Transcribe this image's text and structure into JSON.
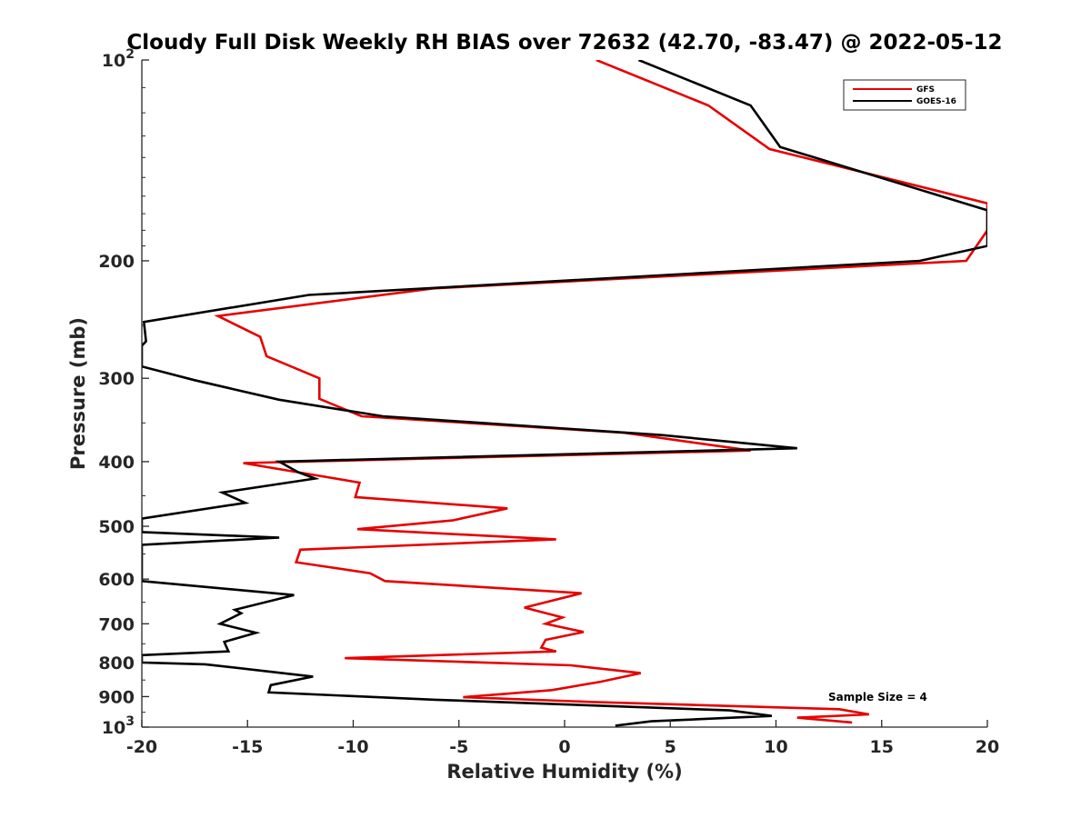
{
  "chart_data": {
    "type": "line",
    "title": "Cloudy Full Disk Weekly RH BIAS over 72632 (42.70, -83.47) @ 2022-05-12",
    "xlabel": "Relative Humidity (%)",
    "ylabel": "Pressure (mb)",
    "xlim": [
      -20,
      20
    ],
    "ylim": [
      100,
      1000
    ],
    "y_scale": "log",
    "y_reversed": true,
    "x_ticks": [
      "-20",
      "-15",
      "-10",
      "-5",
      "0",
      "5",
      "10",
      "15",
      "20"
    ],
    "y_ticks": [
      {
        "value": 100,
        "label": "10",
        "sup": "2"
      },
      {
        "value": 200,
        "label": "200",
        "sup": ""
      },
      {
        "value": 300,
        "label": "300",
        "sup": ""
      },
      {
        "value": 400,
        "label": "400",
        "sup": ""
      },
      {
        "value": 500,
        "label": "500",
        "sup": ""
      },
      {
        "value": 600,
        "label": "600",
        "sup": ""
      },
      {
        "value": 700,
        "label": "700",
        "sup": ""
      },
      {
        "value": 800,
        "label": "800",
        "sup": ""
      },
      {
        "value": 900,
        "label": "900",
        "sup": ""
      },
      {
        "value": 1000,
        "label": "10",
        "sup": "3"
      }
    ],
    "grid": false,
    "legend_position": "top-right",
    "annotation": "Sample Size = 4",
    "series": [
      {
        "name": "GFS",
        "color": "#e60000",
        "points": [
          [
            1.5,
            100
          ],
          [
            6.8,
            117
          ],
          [
            9.7,
            136
          ],
          [
            20.0,
            164
          ],
          [
            20.0,
            180
          ],
          [
            19.0,
            200
          ],
          [
            -6.2,
            220
          ],
          [
            -16.4,
            242
          ],
          [
            -14.4,
            260
          ],
          [
            -14.1,
            278
          ],
          [
            -11.6,
            300
          ],
          [
            -11.6,
            322
          ],
          [
            -9.6,
            342
          ],
          [
            2.8,
            362
          ],
          [
            8.8,
            385
          ],
          [
            -15.2,
            402
          ],
          [
            -9.7,
            430
          ],
          [
            -9.9,
            452
          ],
          [
            -2.7,
            470
          ],
          [
            -5.3,
            490
          ],
          [
            -9.8,
            505
          ],
          [
            -0.4,
            523
          ],
          [
            -12.5,
            542
          ],
          [
            -12.7,
            566
          ],
          [
            -9.2,
            588
          ],
          [
            -8.5,
            604
          ],
          [
            0.8,
            630
          ],
          [
            -1.9,
            662
          ],
          [
            -0.1,
            685
          ],
          [
            -0.9,
            700
          ],
          [
            0.9,
            720
          ],
          [
            -0.9,
            740
          ],
          [
            -1.1,
            760
          ],
          [
            -0.4,
            770
          ],
          [
            -10.4,
            788
          ],
          [
            0.3,
            808
          ],
          [
            3.6,
            830
          ],
          [
            1.7,
            855
          ],
          [
            -0.6,
            880
          ],
          [
            -4.8,
            902
          ],
          [
            1.4,
            917
          ],
          [
            13.0,
            940
          ],
          [
            14.4,
            957
          ],
          [
            11.0,
            968
          ],
          [
            13.6,
            984
          ]
        ]
      },
      {
        "name": "GOES-16",
        "color": "#000000",
        "points": [
          [
            3.5,
            100
          ],
          [
            8.8,
            117
          ],
          [
            10.2,
            135
          ],
          [
            20.0,
            168
          ],
          [
            20.0,
            190
          ],
          [
            16.8,
            200
          ],
          [
            -12.1,
            225
          ],
          [
            -19.9,
            247
          ],
          [
            -19.8,
            264
          ],
          [
            -20.0,
            268
          ],
          [
            -20.0,
            288
          ],
          [
            -17.5,
            302
          ],
          [
            -13.5,
            323
          ],
          [
            -8.6,
            342
          ],
          [
            4.6,
            365
          ],
          [
            11.0,
            382
          ],
          [
            -13.5,
            400
          ],
          [
            -12.6,
            415
          ],
          [
            -11.8,
            424
          ],
          [
            -16.2,
            445
          ],
          [
            -15.1,
            461
          ],
          [
            -20.0,
            487
          ],
          [
            -20.0,
            510
          ],
          [
            -13.5,
            520
          ],
          [
            -20.0,
            533
          ],
          [
            -20.0,
            604
          ],
          [
            -12.8,
            634
          ],
          [
            -15.6,
            667
          ],
          [
            -15.3,
            675
          ],
          [
            -16.3,
            700
          ],
          [
            -14.6,
            722
          ],
          [
            -16.1,
            745
          ],
          [
            -16.0,
            758
          ],
          [
            -15.9,
            770
          ],
          [
            -20.0,
            780
          ],
          [
            -20.0,
            800
          ],
          [
            -17.0,
            805
          ],
          [
            -11.9,
            840
          ],
          [
            -13.9,
            865
          ],
          [
            -14.0,
            887
          ],
          [
            -6.1,
            910
          ],
          [
            7.8,
            944
          ],
          [
            9.8,
            962
          ],
          [
            4.1,
            980
          ],
          [
            2.4,
            995
          ]
        ]
      }
    ]
  }
}
